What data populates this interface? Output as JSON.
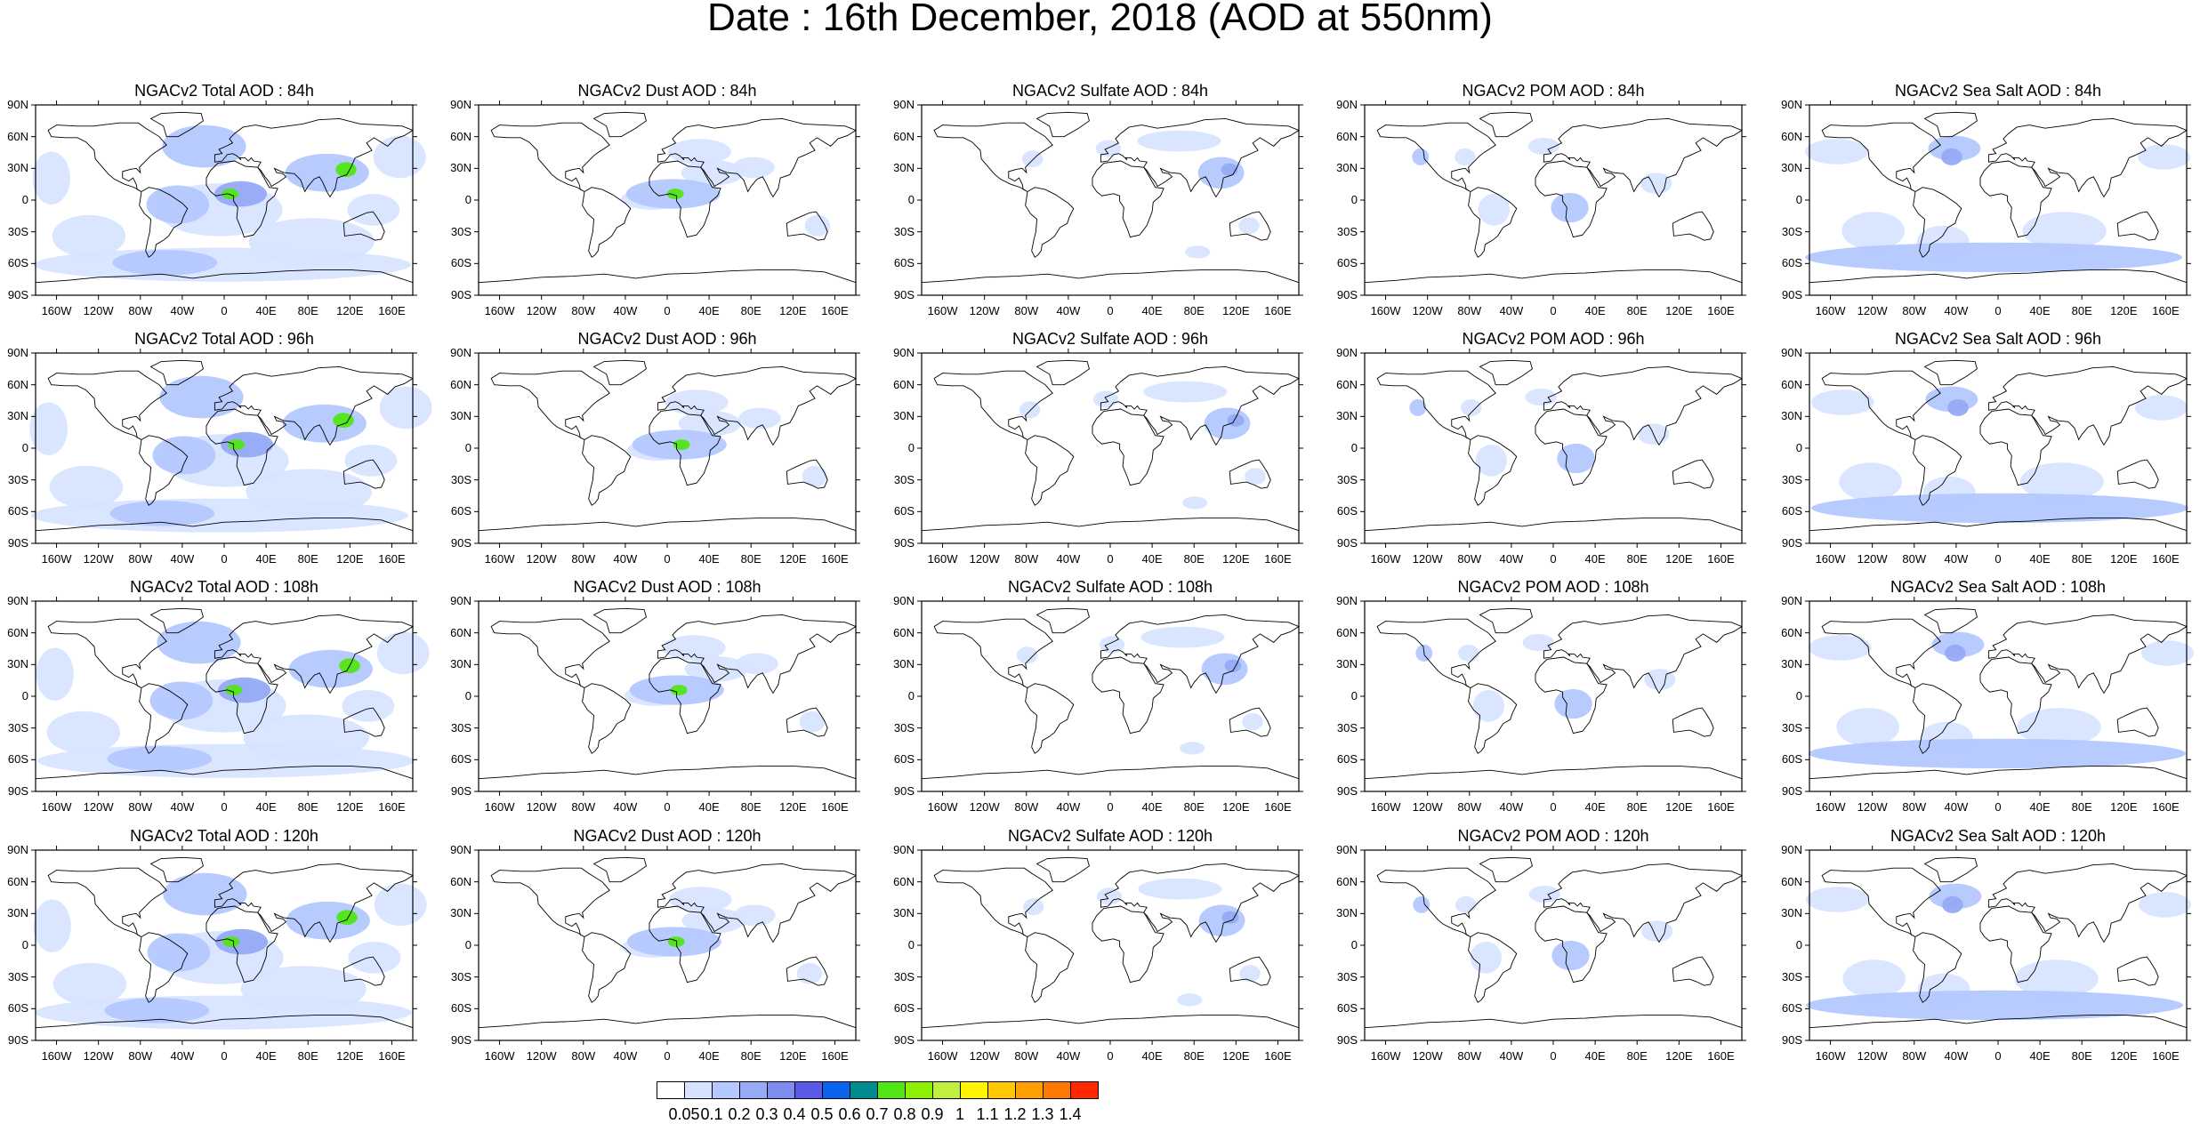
{
  "title": "Date : 16th December, 2018 (AOD at 550nm)",
  "map": {
    "lat_labels": [
      "90N",
      "60N",
      "30N",
      "0",
      "30S",
      "60S",
      "90S"
    ],
    "lon_labels": [
      "160W",
      "120W",
      "80W",
      "40W",
      "0",
      "40E",
      "80E",
      "120E",
      "160E"
    ],
    "lon_values": [
      -160,
      -120,
      -80,
      -40,
      0,
      40,
      80,
      120,
      160
    ]
  },
  "rows": [
    {
      "hour": "84h",
      "titles": [
        "NGACv2 Total AOD : 84h",
        "NGACv2 Dust AOD : 84h",
        "NGACv2 Sulfate AOD : 84h",
        "NGACv2 POM AOD : 84h",
        "NGACv2 Sea Salt AOD : 84h"
      ]
    },
    {
      "hour": "96h",
      "titles": [
        "NGACv2 Total AOD : 96h",
        "NGACv2 Dust AOD : 96h",
        "NGACv2 Sulfate AOD : 96h",
        "NGACv2 POM AOD : 96h",
        "NGACv2 Sea Salt AOD : 96h"
      ]
    },
    {
      "hour": "108h",
      "titles": [
        "NGACv2 Total AOD : 108h",
        "NGACv2 Dust AOD : 108h",
        "NGACv2 Sulfate AOD : 108h",
        "NGACv2 POM AOD : 108h",
        "NGACv2 Sea Salt AOD : 108h"
      ]
    },
    {
      "hour": "120h",
      "titles": [
        "NGACv2 Total AOD : 120h",
        "NGACv2 Dust AOD : 120h",
        "NGACv2 Sulfate AOD : 120h",
        "NGACv2 POM AOD : 120h",
        "NGACv2 Sea Salt  AOD : 120h"
      ]
    }
  ],
  "colorbar": {
    "labels": [
      "0.05",
      "0.1",
      "0.2",
      "0.3",
      "0.4",
      "0.5",
      "0.6",
      "0.7",
      "0.8",
      "0.9",
      "1",
      "1.1",
      "1.2",
      "1.3",
      "1.4"
    ],
    "colors": [
      "#ffffff",
      "#d6e2ff",
      "#b4c8ff",
      "#96aaf5",
      "#7c8cf0",
      "#5a5ae6",
      "#0a64f0",
      "#008c8c",
      "#50e614",
      "#8cf000",
      "#bef03c",
      "#fff500",
      "#ffc800",
      "#ffa000",
      "#ff7800",
      "#ff2800"
    ]
  },
  "aerosol_colors": {
    "light": "#d6e2ff",
    "mid": "#b4c8ff",
    "dark": "#96aaf5",
    "hot": "#50e614"
  }
}
